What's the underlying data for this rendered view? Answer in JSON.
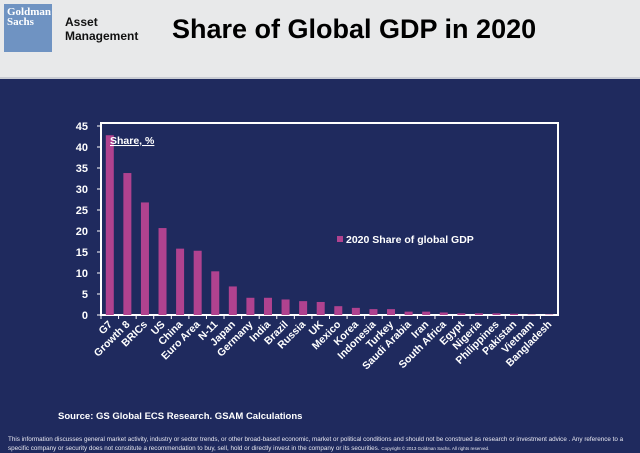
{
  "header": {
    "logo_text": "Goldman Sachs",
    "division": "Asset Management",
    "title": "Share of Global GDP in 2020"
  },
  "chart_data": {
    "type": "bar",
    "title": "Share of Global GDP in 2020",
    "annotation": "Share, %",
    "categories": [
      "G7",
      "Growth 8",
      "BRICs",
      "US",
      "China",
      "Euro Area",
      "N-11",
      "Japan",
      "Germany",
      "India",
      "Brazil",
      "Russia",
      "UK",
      "Mexico",
      "Korea",
      "Indonesia",
      "Turkey",
      "Saudi Arabia",
      "Iran",
      "South Africa",
      "Egypt",
      "Nigeria",
      "Philippines",
      "Pakistan",
      "Vietnam",
      "Bangladesh"
    ],
    "series": [
      {
        "name": "2020 Share of global GDP",
        "values": [
          42.8,
          33.8,
          26.8,
          20.7,
          15.8,
          15.3,
          10.4,
          6.8,
          4.1,
          4.1,
          3.7,
          3.3,
          3.1,
          2.1,
          1.7,
          1.4,
          1.4,
          0.8,
          0.8,
          0.6,
          0.4,
          0.4,
          0.4,
          0.3,
          0.1,
          0.1
        ],
        "color": "#b0428f"
      }
    ],
    "ylim": [
      0,
      45
    ],
    "yticks": [
      0,
      5,
      10,
      15,
      20,
      25,
      30,
      35,
      40,
      45
    ],
    "grid": false,
    "legend": "center-right"
  },
  "footer": {
    "source": "Source: GS Global ECS Research. GSAM Calculations",
    "disclaimer": "This information discusses general market activity, industry or sector trends, or other broad-based economic, market or political conditions and should not be construed as research or investment advice . Any reference to a specific company or security does not constitute a recommendation to buy, sell, hold or directly invest in the company or its securities.",
    "copyright": "Copyright © 2013 Goldman Sachs. All rights reserved."
  }
}
